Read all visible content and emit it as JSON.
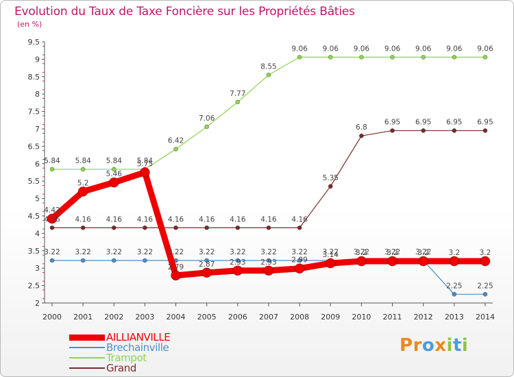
{
  "chart_data": {
    "type": "line",
    "title": "Evolution du Taux de Taxe Foncière sur les Propriétés Bâties",
    "unit_label": "(en %)",
    "xlabel": "",
    "ylabel": "",
    "ylim": [
      2,
      9.5
    ],
    "y_ticks": [
      "2",
      "2.5",
      "3",
      "3.5",
      "4",
      "4.5",
      "5",
      "5.5",
      "6",
      "6.5",
      "7",
      "7.5",
      "8",
      "8.5",
      "9",
      "9.5"
    ],
    "categories": [
      "2000",
      "2001",
      "2002",
      "2003",
      "2004",
      "2005",
      "2006",
      "2007",
      "2008",
      "2009",
      "2010",
      "2011",
      "2012",
      "2013",
      "2014"
    ],
    "series": [
      {
        "name": "AILLIANVILLE",
        "color": "#ee0000",
        "lineWidth": 9,
        "marker": 7,
        "values": [
          4.42,
          5.2,
          5.46,
          5.75,
          2.79,
          2.87,
          2.93,
          2.93,
          2.99,
          3.14,
          3.2,
          3.2,
          3.2,
          3.2,
          3.2
        ],
        "labels": [
          "4.42",
          "5.2",
          "5.46",
          "5.75",
          "2.79",
          "2.87",
          "2.93",
          "2.93",
          "2.99",
          "3.14",
          "3.2",
          "3.2",
          "3.2",
          "3.2",
          "3.2"
        ]
      },
      {
        "name": "Brechainville",
        "color": "#4d8dc4",
        "lineWidth": 1.2,
        "marker": 3,
        "values": [
          3.22,
          3.22,
          3.22,
          3.22,
          3.22,
          3.22,
          3.22,
          3.22,
          3.22,
          3.22,
          3.22,
          3.22,
          3.22,
          2.25,
          2.25
        ],
        "labels": [
          "3.22",
          "3.22",
          "3.22",
          "3.22",
          "3.22",
          "3.22",
          "3.22",
          "3.22",
          "3.22",
          "3.22",
          "3.22",
          "3.22",
          "3.22",
          "2.25",
          "2.25"
        ]
      },
      {
        "name": "Trampot",
        "color": "#8fd44f",
        "lineWidth": 1.2,
        "marker": 3,
        "values": [
          5.84,
          5.84,
          5.84,
          5.84,
          6.42,
          7.06,
          7.77,
          8.55,
          9.06,
          9.06,
          9.06,
          9.06,
          9.06,
          9.06,
          9.06
        ],
        "labels": [
          "5.84",
          "5.84",
          "5.84",
          "5.84",
          "6.42",
          "7.06",
          "7.77",
          "8.55",
          "9.06",
          "9.06",
          "9.06",
          "9.06",
          "9.06",
          "9.06",
          "9.06"
        ]
      },
      {
        "name": "Grand",
        "color": "#7a2b2b",
        "lineWidth": 1.2,
        "marker": 3,
        "values": [
          4.16,
          4.16,
          4.16,
          4.16,
          4.16,
          4.16,
          4.16,
          4.16,
          4.16,
          5.35,
          6.8,
          6.95,
          6.95,
          6.95,
          6.95
        ],
        "labels": [
          "4.16",
          "4.16",
          "4.16",
          "4.16",
          "4.16",
          "4.16",
          "4.16",
          "4.16",
          "4.16",
          "5.35",
          "6.8",
          "6.95",
          "6.95",
          "6.95",
          "6.95"
        ]
      }
    ],
    "legend": [
      {
        "name": "AILLIANVILLE",
        "color": "#ee0000",
        "lineWidth": 9
      },
      {
        "name": "Brechainville",
        "color": "#4d8dc4",
        "lineWidth": 2
      },
      {
        "name": "Trampot",
        "color": "#8fd44f",
        "lineWidth": 2
      },
      {
        "name": "Grand",
        "color": "#7a2b2b",
        "lineWidth": 2
      }
    ]
  },
  "logo": {
    "letters": [
      "P",
      "r",
      "o",
      "x",
      "i",
      "t",
      "i"
    ],
    "colors": [
      "#e98a22",
      "#e98a22",
      "#4d9be0",
      "#e98a22",
      "#8dc63f",
      "#4d9be0",
      "#8dc63f"
    ]
  }
}
